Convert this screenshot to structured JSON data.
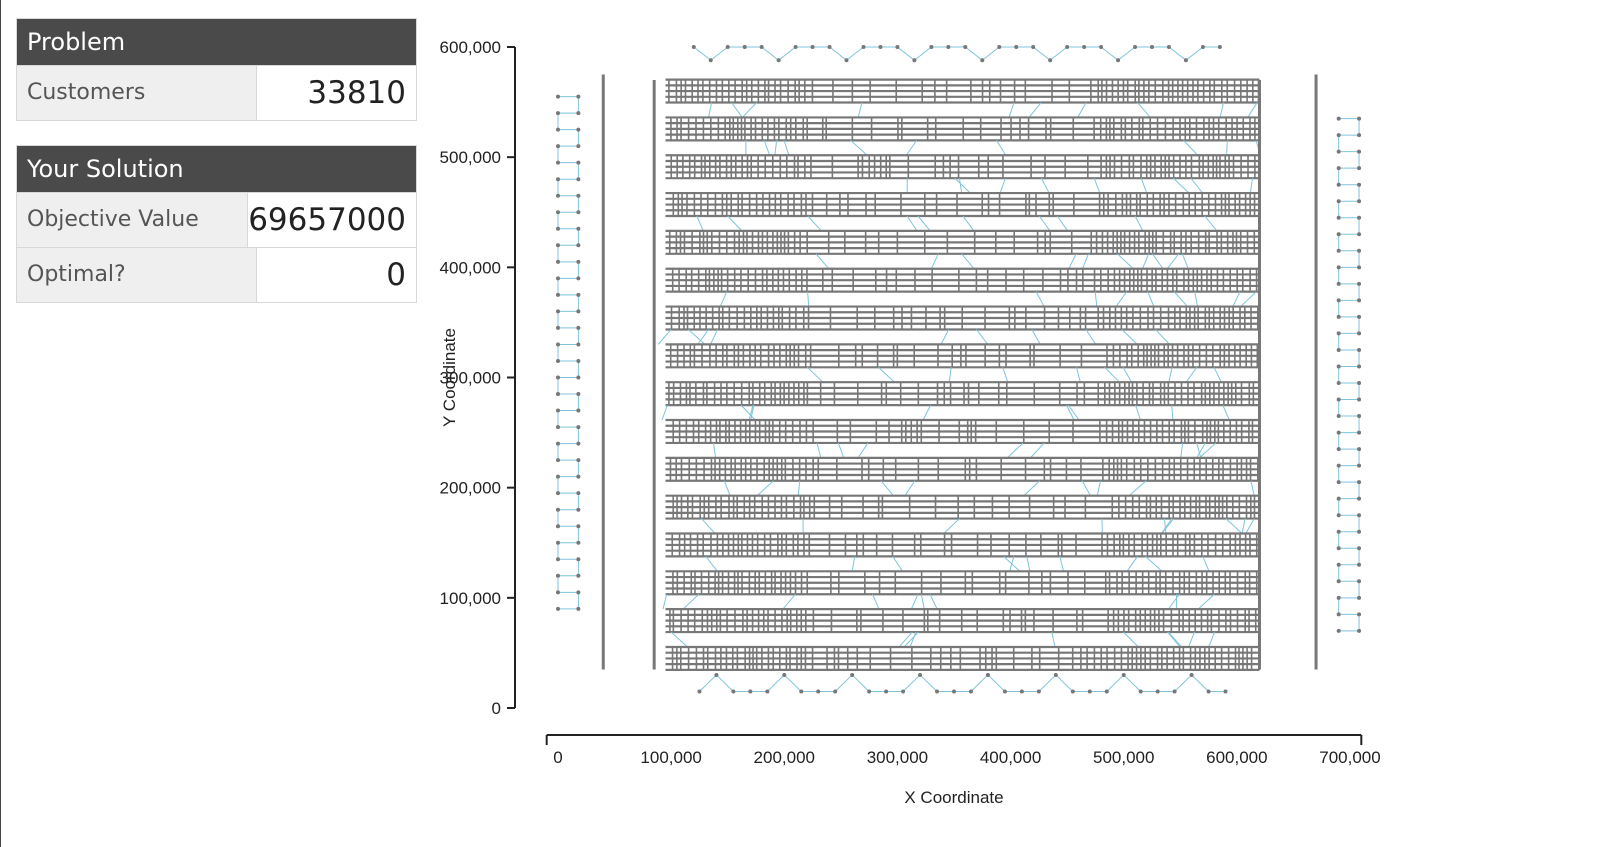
{
  "problem": {
    "header": "Problem",
    "rows": [
      {
        "label": "Customers",
        "value": "33810"
      }
    ]
  },
  "solution": {
    "header": "Your Solution",
    "rows": [
      {
        "label": "Objective Value",
        "value": "69657000"
      },
      {
        "label": "Optimal?",
        "value": "0"
      }
    ]
  },
  "chart_data": {
    "type": "scatter",
    "xlabel": "X Coordinate",
    "ylabel": "Y Coordinate",
    "xlim": [
      0,
      700000
    ],
    "ylim": [
      0,
      600000
    ],
    "x_ticks": [
      "0",
      "100,000",
      "200,000",
      "300,000",
      "400,000",
      "500,000",
      "600,000",
      "700,000"
    ],
    "y_ticks": [
      "0",
      "100,000",
      "200,000",
      "300,000",
      "400,000",
      "500,000",
      "600,000"
    ],
    "point_color": "#777777",
    "route_color": "#7fc4dc",
    "grid": false
  }
}
